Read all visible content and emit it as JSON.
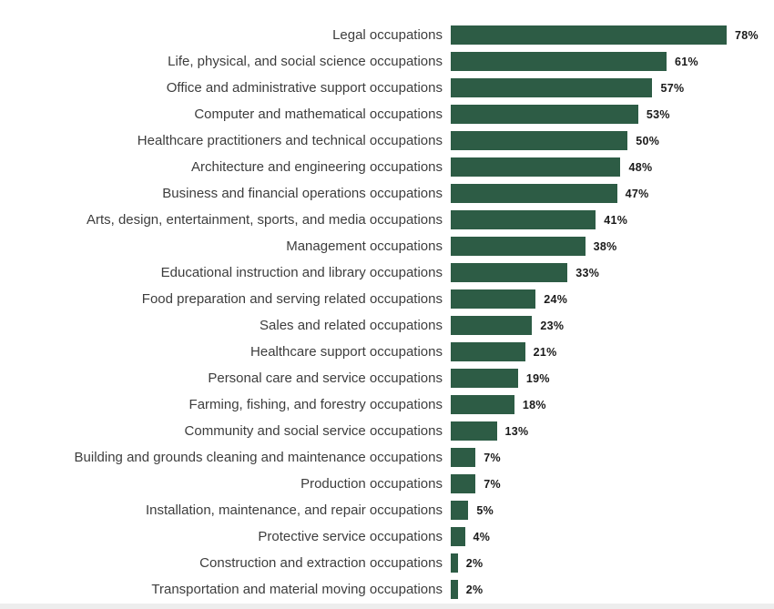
{
  "chart_data": {
    "type": "bar",
    "orientation": "horizontal",
    "title": "",
    "xlabel": "",
    "ylabel": "",
    "xlim": [
      0,
      80
    ],
    "grid": false,
    "legend": false,
    "bar_color": "#2d5c45",
    "category_label_color": "#3d3d3d",
    "value_label_color": "#1a1a1a",
    "categories": [
      "Legal occupations",
      "Life, physical, and social science occupations",
      "Office and administrative support occupations",
      "Computer and mathematical occupations",
      "Healthcare practitioners and technical occupations",
      "Architecture and engineering occupations",
      "Business and financial operations occupations",
      "Arts, design, entertainment, sports, and media occupations",
      "Management occupations",
      "Educational instruction and library occupations",
      "Food preparation and serving related occupations",
      "Sales and related occupations",
      "Healthcare support occupations",
      "Personal care and service occupations",
      "Farming, fishing, and forestry occupations",
      "Community and social service occupations",
      "Building and grounds cleaning and maintenance occupations",
      "Production occupations",
      "Installation, maintenance, and repair occupations",
      "Protective service occupations",
      "Construction and extraction occupations",
      "Transportation and material moving occupations"
    ],
    "values": [
      78,
      61,
      57,
      53,
      50,
      48,
      47,
      41,
      38,
      33,
      24,
      23,
      21,
      19,
      18,
      13,
      7,
      7,
      5,
      4,
      2,
      2
    ],
    "value_labels": [
      "78%",
      "61%",
      "57%",
      "53%",
      "50%",
      "48%",
      "47%",
      "41%",
      "38%",
      "33%",
      "24%",
      "23%",
      "21%",
      "19%",
      "18%",
      "13%",
      "7%",
      "7%",
      "5%",
      "4%",
      "2%",
      "2%"
    ]
  }
}
